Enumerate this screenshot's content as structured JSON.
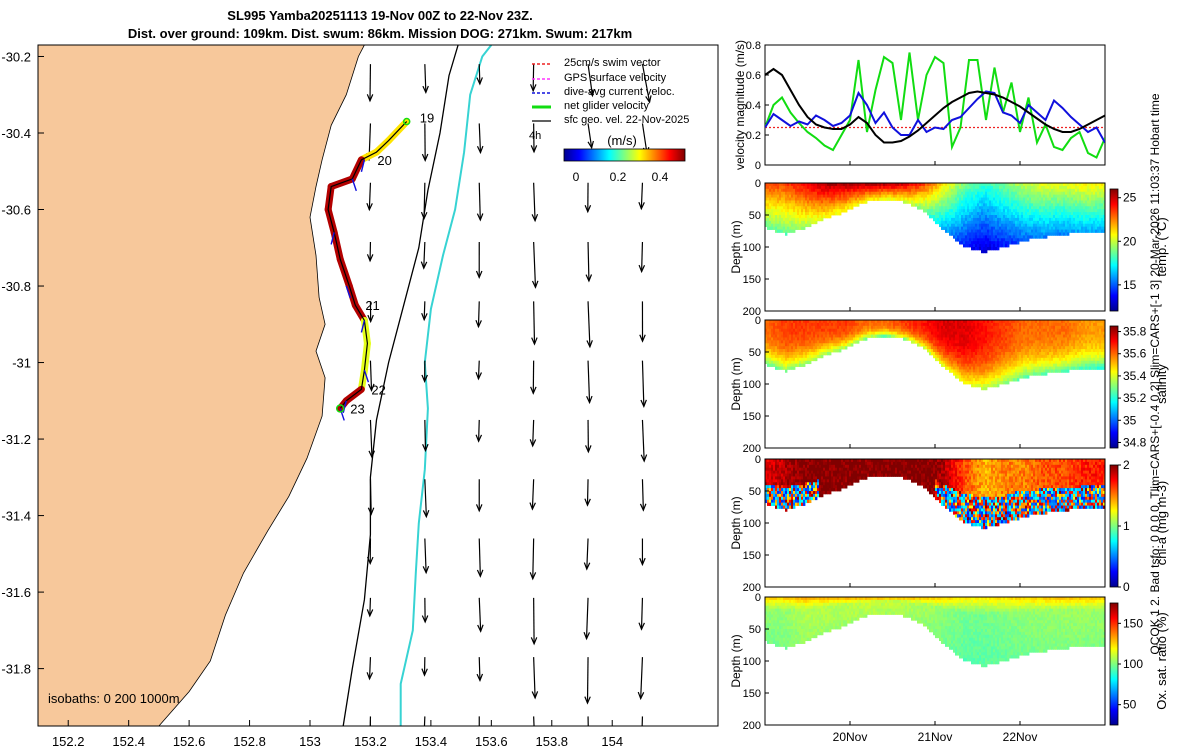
{
  "title": {
    "line1": "SL995 Yamba20251113 19-Nov 00Z to 22-Nov 23Z.",
    "line2": "Dist. over ground: 109km. Dist. swum: 86km. Mission DOG: 271km. Swum: 217km"
  },
  "side_label": "QCOK 1  2. Bad tsfo: 0  0  0  0. Tlim=CARS+[-0.4 0.2] Slim=CARS+[-1 3] 20-Mar-2026 11:03:37 Hobart time",
  "colors": {
    "land": "#f7c89b",
    "cyan": "#37d3d3",
    "track": "#8b0000",
    "green": "#11dd11",
    "blue": "#1010dd",
    "red": "#ee2222",
    "magenta": "#ff33ff"
  },
  "chart_data": [
    {
      "type": "map",
      "name": "glider track map",
      "xlim": [
        152.1,
        154.35
      ],
      "ylim": [
        -31.95,
        -30.17
      ],
      "xticks": [
        152.2,
        152.4,
        152.6,
        152.8,
        153,
        153.2,
        153.4,
        153.6,
        153.8,
        154
      ],
      "xtick_labels": [
        "152.2",
        "152.4",
        "152.6",
        "152.8",
        "153",
        "153.2",
        "153.4",
        "153.6",
        "153.8",
        "154"
      ],
      "yticks": [
        -30.2,
        -30.4,
        -30.6,
        -30.8,
        -31,
        -31.2,
        -31.4,
        -31.6,
        -31.8
      ],
      "ytick_labels": [
        "-30.2",
        "-30.4",
        "-30.6",
        "-30.8",
        "-31",
        "-31.2",
        "-31.4",
        "-31.6",
        "-31.8"
      ],
      "coastline": [
        [
          152.5,
          -31.95
        ],
        [
          152.6,
          -31.86
        ],
        [
          152.67,
          -31.78
        ],
        [
          152.72,
          -31.66
        ],
        [
          152.78,
          -31.55
        ],
        [
          152.86,
          -31.44
        ],
        [
          152.93,
          -31.35
        ],
        [
          152.99,
          -31.25
        ],
        [
          153.04,
          -31.14
        ],
        [
          153.05,
          -31.04
        ],
        [
          153.02,
          -30.97
        ],
        [
          153.05,
          -30.9
        ],
        [
          153.03,
          -30.83
        ],
        [
          153.02,
          -30.72
        ],
        [
          153.0,
          -30.62
        ],
        [
          153.02,
          -30.54
        ],
        [
          153.04,
          -30.47
        ],
        [
          153.07,
          -30.38
        ],
        [
          153.12,
          -30.3
        ],
        [
          153.16,
          -30.2
        ],
        [
          153.18,
          -30.17
        ]
      ],
      "isobath_200": [
        [
          153.11,
          -31.95
        ],
        [
          153.14,
          -31.8
        ],
        [
          153.18,
          -31.62
        ],
        [
          153.2,
          -31.45
        ],
        [
          153.2,
          -31.3
        ],
        [
          153.22,
          -31.15
        ],
        [
          153.26,
          -31.0
        ],
        [
          153.31,
          -30.85
        ],
        [
          153.36,
          -30.7
        ],
        [
          153.39,
          -30.55
        ],
        [
          153.43,
          -30.4
        ],
        [
          153.46,
          -30.25
        ],
        [
          153.49,
          -30.17
        ]
      ],
      "isobath_1000": [
        [
          153.3,
          -31.95
        ],
        [
          153.3,
          -31.84
        ],
        [
          153.34,
          -31.7
        ],
        [
          153.35,
          -31.55
        ],
        [
          153.36,
          -31.42
        ],
        [
          153.38,
          -31.28
        ],
        [
          153.39,
          -31.12
        ],
        [
          153.38,
          -31.0
        ],
        [
          153.4,
          -30.86
        ],
        [
          153.44,
          -30.72
        ],
        [
          153.48,
          -30.6
        ],
        [
          153.51,
          -30.45
        ],
        [
          153.53,
          -30.3
        ],
        [
          153.57,
          -30.2
        ],
        [
          153.6,
          -30.17
        ]
      ],
      "track": [
        [
          153.32,
          -30.37
        ],
        [
          153.26,
          -30.42
        ],
        [
          153.22,
          -30.45
        ],
        [
          153.17,
          -30.47
        ],
        [
          153.14,
          -30.52
        ],
        [
          153.07,
          -30.54
        ],
        [
          153.06,
          -30.6
        ],
        [
          153.08,
          -30.66
        ],
        [
          153.1,
          -30.73
        ],
        [
          153.13,
          -30.8
        ],
        [
          153.15,
          -30.85
        ],
        [
          153.18,
          -30.89
        ],
        [
          153.19,
          -30.95
        ],
        [
          153.18,
          -31.02
        ],
        [
          153.17,
          -31.07
        ],
        [
          153.12,
          -31.1
        ],
        [
          153.1,
          -31.12
        ]
      ],
      "track_point_labels": [
        "19",
        "20",
        "21",
        "22",
        "23"
      ],
      "annotation": "4h",
      "legend": [
        "25cm/s swim vector",
        "GPS surface velocity",
        "dive-avg current veloc.",
        "net glider velocity",
        "sfc geo. vel. 22-Nov-2025"
      ],
      "colorbar_label": "(m/s)",
      "colorbar_ticks": [
        "0",
        "0.2",
        "0.4"
      ],
      "colorbar_range": [
        0,
        0.5
      ],
      "isobaths_label": "isobaths: 0   200  1000m"
    },
    {
      "type": "line",
      "name": "velocity magnitude",
      "ylabel": "velocity magnitude (m/s)",
      "ylim": [
        0,
        0.8
      ],
      "yticks": [
        "0",
        "0.2",
        "0.4",
        "0.6",
        "0.8"
      ],
      "x": [
        0,
        0.1,
        0.2,
        0.3,
        0.4,
        0.5,
        0.6,
        0.7,
        0.8,
        0.9,
        1.0,
        1.1,
        1.2,
        1.3,
        1.4,
        1.5,
        1.6,
        1.7,
        1.8,
        1.9,
        2.0,
        2.1,
        2.2,
        2.3,
        2.4,
        2.5,
        2.6,
        2.7,
        2.8,
        2.9,
        3.0,
        3.1,
        3.2,
        3.3,
        3.4,
        3.5,
        3.6,
        3.7,
        3.8,
        3.9,
        4.0
      ],
      "series": [
        {
          "name": "sfc geo. vel.",
          "values": [
            0.6,
            0.64,
            0.6,
            0.5,
            0.4,
            0.32,
            0.27,
            0.25,
            0.24,
            0.24,
            0.27,
            0.32,
            0.28,
            0.2,
            0.15,
            0.15,
            0.16,
            0.19,
            0.23,
            0.28,
            0.33,
            0.38,
            0.42,
            0.45,
            0.48,
            0.49,
            0.48,
            0.47,
            0.45,
            0.42,
            0.39,
            0.35,
            0.31,
            0.27,
            0.24,
            0.22,
            0.22,
            0.24,
            0.27,
            0.3,
            0.33
          ]
        },
        {
          "name": "net glider velocity",
          "values": [
            0.25,
            0.4,
            0.45,
            0.35,
            0.28,
            0.22,
            0.18,
            0.13,
            0.1,
            0.2,
            0.3,
            0.7,
            0.22,
            0.5,
            0.72,
            0.68,
            0.3,
            0.75,
            0.3,
            0.6,
            0.72,
            0.68,
            0.12,
            0.25,
            0.7,
            0.7,
            0.3,
            0.65,
            0.35,
            0.55,
            0.22,
            0.45,
            0.15,
            0.27,
            0.12,
            0.1,
            0.18,
            0.22,
            0.08,
            0.05,
            0.18
          ]
        },
        {
          "name": "dive-avg current veloc.",
          "values": [
            0.25,
            0.34,
            0.3,
            0.26,
            0.29,
            0.27,
            0.33,
            0.3,
            0.26,
            0.28,
            0.33,
            0.48,
            0.4,
            0.28,
            0.35,
            0.25,
            0.2,
            0.2,
            0.3,
            0.22,
            0.25,
            0.24,
            0.3,
            0.32,
            0.38,
            0.44,
            0.49,
            0.48,
            0.35,
            0.33,
            0.28,
            0.4,
            0.35,
            0.3,
            0.43,
            0.38,
            0.32,
            0.27,
            0.22,
            0.25,
            0.15
          ]
        },
        {
          "name": "25cm/s swim vector",
          "values": [
            0.25,
            0.25,
            0.25,
            0.25,
            0.25,
            0.25,
            0.25,
            0.25,
            0.25,
            0.25,
            0.25,
            0.25,
            0.25,
            0.25,
            0.25,
            0.25,
            0.25,
            0.25,
            0.25,
            0.25,
            0.25,
            0.25,
            0.25,
            0.25,
            0.25,
            0.25,
            0.25,
            0.25,
            0.25,
            0.25,
            0.25,
            0.25,
            0.25,
            0.25,
            0.25,
            0.25,
            0.25,
            0.25,
            0.25,
            0.25,
            0.25
          ]
        }
      ]
    },
    {
      "type": "heatmap",
      "name": "temperature section",
      "ylabel": "Depth (m)",
      "colorbar_label": "temp. (°C)",
      "yticks": [
        "0",
        "50",
        "100",
        "150",
        "200"
      ],
      "cticks": [
        "25",
        "20",
        "15"
      ],
      "clim": [
        12,
        26
      ],
      "bottom_depth": [
        70,
        80,
        70,
        55,
        45,
        30,
        25,
        30,
        45,
        75,
        100,
        108,
        100,
        90,
        85,
        80,
        78,
        75
      ],
      "column_values": [
        21,
        21,
        22,
        23,
        23,
        23,
        23,
        22.5,
        21,
        18.5,
        16.5,
        15.5,
        16.5,
        17.5,
        18,
        18,
        18.5,
        18.5
      ]
    },
    {
      "type": "heatmap",
      "name": "salinity section",
      "ylabel": "Depth (m)",
      "colorbar_label": "salinity",
      "yticks": [
        "0",
        "50",
        "100",
        "150",
        "200"
      ],
      "cticks": [
        "35.8",
        "35.6",
        "35.4",
        "35.2",
        "35",
        "34.8"
      ],
      "clim": [
        34.75,
        35.85
      ],
      "bottom_depth": [
        70,
        80,
        70,
        55,
        45,
        30,
        25,
        30,
        45,
        75,
        100,
        108,
        100,
        90,
        85,
        80,
        78,
        75
      ],
      "column_values": [
        35.55,
        35.6,
        35.6,
        35.6,
        35.6,
        35.55,
        35.55,
        35.6,
        35.65,
        35.7,
        35.7,
        35.65,
        35.6,
        35.55,
        35.55,
        35.55,
        35.5,
        35.5
      ]
    },
    {
      "type": "heatmap",
      "name": "chlorophyll section",
      "ylabel": "Depth (m)",
      "colorbar_label": "chl-a (mg m-3)",
      "yticks": [
        "0",
        "50",
        "100",
        "150",
        "200"
      ],
      "cticks": [
        "2",
        "1",
        "0"
      ],
      "clim": [
        0,
        2
      ],
      "bottom_depth": [
        70,
        80,
        70,
        55,
        45,
        30,
        25,
        30,
        45,
        75,
        100,
        108,
        100,
        90,
        85,
        80,
        78,
        75
      ],
      "column_values": [
        1.8,
        1.9,
        2.0,
        2.0,
        2.0,
        2.0,
        2.0,
        2.0,
        2.0,
        1.9,
        1.6,
        1.4,
        1.5,
        1.5,
        1.6,
        1.6,
        1.7,
        1.7
      ]
    },
    {
      "type": "heatmap",
      "name": "oxygen section",
      "ylabel": "Depth (m)",
      "colorbar_label": "Ox. sat. ratio (%)",
      "yticks": [
        "0",
        "50",
        "100",
        "150",
        "200"
      ],
      "cticks": [
        "150",
        "100",
        "50"
      ],
      "clim": [
        25,
        175
      ],
      "bottom_depth": [
        70,
        80,
        70,
        55,
        45,
        30,
        25,
        30,
        45,
        75,
        100,
        108,
        100,
        90,
        85,
        80,
        78,
        75
      ],
      "column_values": [
        105,
        105,
        110,
        110,
        110,
        112,
        112,
        110,
        108,
        104,
        100,
        100,
        102,
        104,
        105,
        106,
        106,
        106
      ]
    }
  ],
  "time_axis": {
    "ticks": [
      "20Nov",
      "21Nov",
      "22Nov"
    ],
    "positions": [
      1,
      2,
      3
    ],
    "range": [
      0,
      4
    ]
  }
}
